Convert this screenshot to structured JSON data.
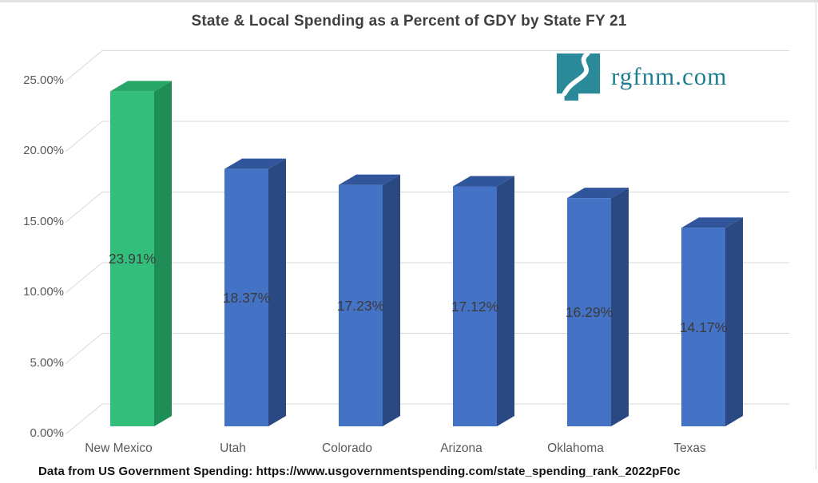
{
  "chart_data": {
    "type": "bar",
    "style": "3d-column",
    "title": "State & Local Spending as a Percent of GDY by State FY 21",
    "categories": [
      "New Mexico",
      "Utah",
      "Colorado",
      "Arizona",
      "Oklahoma",
      "Texas"
    ],
    "values": [
      23.91,
      18.37,
      17.23,
      17.12,
      16.29,
      14.17
    ],
    "data_labels": [
      "23.91%",
      "18.37%",
      "17.23%",
      "17.12%",
      "16.29%",
      "14.17%"
    ],
    "xlabel": "",
    "ylabel": "",
    "ylim": [
      0,
      25
    ],
    "y_ticks": [
      "0.00%",
      "5.00%",
      "10.00%",
      "15.00%",
      "20.00%",
      "25.00%"
    ],
    "y_tick_values": [
      0,
      5,
      10,
      15,
      20,
      25
    ],
    "grid": true,
    "legend": false,
    "highlight_index": 0,
    "colors": {
      "highlight_bar": {
        "front": "#33BE7C",
        "top": "#28A667",
        "side": "#1F8D56"
      },
      "default_bar": {
        "front": "#4472C4",
        "top": "#31559B",
        "side": "#2A4983"
      },
      "gridline": "#D9D9D9",
      "title_text": "#404040",
      "axis_text": "#595959",
      "label_text": "#3B3B3B"
    }
  },
  "logo": {
    "text": "rgfnm.com",
    "color": "#1D7E8F",
    "icon": "new-mexico-state-icon"
  },
  "source": {
    "text": "Data from US Government Spending: https://www.usgovernmentspending.com/state_spending_rank_2022pF0c"
  }
}
